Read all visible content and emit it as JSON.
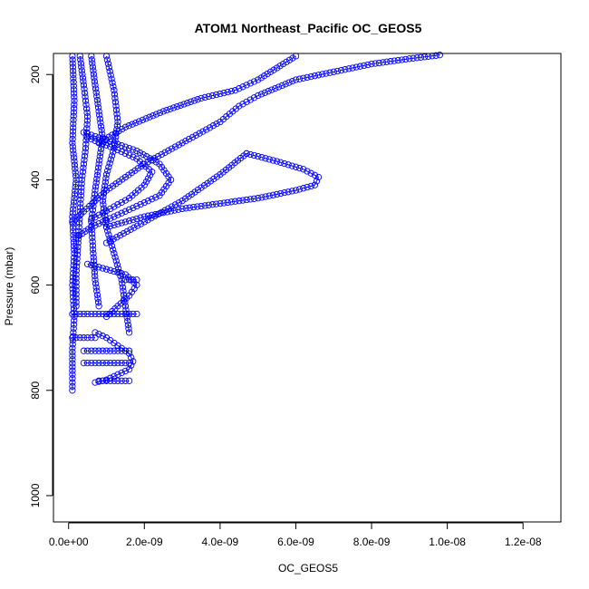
{
  "chart_data": {
    "type": "scatter",
    "title": "ATOM1 Northeast_Pacific OC_GEOS5",
    "xlabel": "OC_GEOS5",
    "ylabel": "Pressure (mbar)",
    "xlim": [
      -4e-10,
      1.3e-08
    ],
    "ylim": [
      1050,
      160
    ],
    "y_reversed": true,
    "grid": false,
    "legend": "none",
    "marker": "open-circle",
    "color": "#0000ff",
    "x_ticks": [
      {
        "value": 0,
        "label": "0.0e+00"
      },
      {
        "value": 2e-09,
        "label": "2.0e-09"
      },
      {
        "value": 4e-09,
        "label": "4.0e-09"
      },
      {
        "value": 6e-09,
        "label": "6.0e-09"
      },
      {
        "value": 8e-09,
        "label": "8.0e-09"
      },
      {
        "value": 1e-08,
        "label": "1.0e-08"
      },
      {
        "value": 1.2e-08,
        "label": "1.2e-08"
      }
    ],
    "y_ticks": [
      {
        "value": 200,
        "label": "200"
      },
      {
        "value": 400,
        "label": "400"
      },
      {
        "value": 600,
        "label": "600"
      },
      {
        "value": 800,
        "label": "800"
      },
      {
        "value": 1000,
        "label": "1000"
      }
    ],
    "series": [
      {
        "x": [
          1e-10,
          1.5e-10,
          1e-10,
          2e-10,
          1e-10,
          1.5e-10,
          1e-10,
          1.5e-10,
          1e-10,
          1e-10,
          1e-10
        ],
        "y": [
          165,
          250,
          330,
          400,
          470,
          540,
          600,
          660,
          720,
          770,
          800
        ]
      },
      {
        "x": [
          3e-10,
          4e-10,
          5e-10,
          4.5e-10,
          3.5e-10,
          3e-10,
          2.5e-10,
          2e-10,
          2e-10
        ],
        "y": [
          165,
          220,
          280,
          340,
          400,
          460,
          520,
          580,
          640
        ]
      },
      {
        "x": [
          6e-10,
          7e-10,
          8e-10,
          9e-10,
          8e-10,
          7e-10,
          6e-10,
          6.5e-10,
          7e-10,
          8e-10
        ],
        "y": [
          165,
          220,
          270,
          320,
          370,
          420,
          480,
          540,
          590,
          640
        ]
      },
      {
        "x": [
          1e-09,
          1.2e-09,
          1.3e-09,
          1.2e-09,
          1e-09,
          9e-10,
          1e-09,
          1.2e-09,
          1.4e-09,
          1.5e-09,
          1.6e-09
        ],
        "y": [
          165,
          230,
          290,
          340,
          390,
          440,
          490,
          540,
          590,
          640,
          690
        ]
      },
      {
        "x": [
          1e-10,
          1e-09,
          2e-09,
          3e-09,
          4e-09,
          4.5e-09,
          5e-09,
          6e-09,
          7e-09,
          8e-09,
          9e-09,
          9.8e-09
        ],
        "y": [
          480,
          420,
          370,
          330,
          290,
          260,
          240,
          210,
          195,
          180,
          170,
          163
        ]
      },
      {
        "x": [
          8e-10,
          1.5e-09,
          2.5e-09,
          3.5e-09,
          4.4e-09,
          5e-09,
          6e-09
        ],
        "y": [
          330,
          300,
          270,
          245,
          230,
          210,
          165
        ]
      },
      {
        "x": [
          1e-09,
          2e-09,
          3e-09,
          4e-09,
          5e-09,
          6e-09,
          6.5e-09,
          6.6e-09,
          6.2e-09,
          5.5e-09,
          4.7e-09
        ],
        "y": [
          490,
          470,
          455,
          445,
          435,
          420,
          410,
          395,
          380,
          365,
          350
        ]
      },
      {
        "x": [
          1e-09,
          2e-09,
          3e-09,
          4e-09,
          4.7e-09
        ],
        "y": [
          520,
          480,
          440,
          390,
          350
        ]
      },
      {
        "x": [
          4e-10,
          1e-09,
          1.8e-09,
          2.4e-09,
          2.7e-09,
          2.4e-09,
          1.8e-09,
          1.2e-09,
          6e-10,
          2e-10
        ],
        "y": [
          310,
          325,
          345,
          370,
          400,
          430,
          450,
          470,
          490,
          510
        ]
      },
      {
        "x": [
          5e-10,
          1.2e-09,
          1.8e-09,
          2.2e-09,
          2e-09,
          1.6e-09,
          1.1e-09,
          6e-10
        ],
        "y": [
          320,
          340,
          360,
          385,
          410,
          435,
          455,
          475
        ]
      },
      {
        "x": [
          5e-10,
          1e-09,
          1.5e-09,
          1.8e-09,
          1.6e-09,
          1.3e-09,
          1e-09
        ],
        "y": [
          560,
          570,
          580,
          600,
          620,
          640,
          660
        ]
      },
      {
        "x": [
          7e-10,
          1e-09,
          1.3e-09,
          1.6e-09,
          1.7e-09,
          1.6e-09,
          1.3e-09,
          1e-09,
          7e-10
        ],
        "y": [
          690,
          700,
          715,
          730,
          745,
          760,
          770,
          780,
          785
        ]
      },
      {
        "x": [
          1e-10,
          5e-10,
          9e-10,
          1.3e-09,
          1.8e-09
        ],
        "y": [
          655,
          655,
          655,
          655,
          655
        ]
      },
      {
        "x": [
          4e-10,
          8e-10,
          1.2e-09,
          1.6e-09
        ],
        "y": [
          725,
          725,
          725,
          725
        ]
      },
      {
        "x": [
          4e-10,
          8e-10,
          1.2e-09,
          1.6e-09
        ],
        "y": [
          748,
          748,
          748,
          748
        ]
      },
      {
        "x": [
          8e-10,
          1.1e-09,
          1.4e-09,
          1.6e-09
        ],
        "y": [
          782,
          782,
          782,
          782
        ]
      },
      {
        "x": [
          1.5e-09,
          1.8e-09
        ],
        "y": [
          590,
          590
        ]
      },
      {
        "x": [
          1e-10,
          4e-10,
          7e-10
        ],
        "y": [
          700,
          700,
          700
        ]
      }
    ]
  }
}
